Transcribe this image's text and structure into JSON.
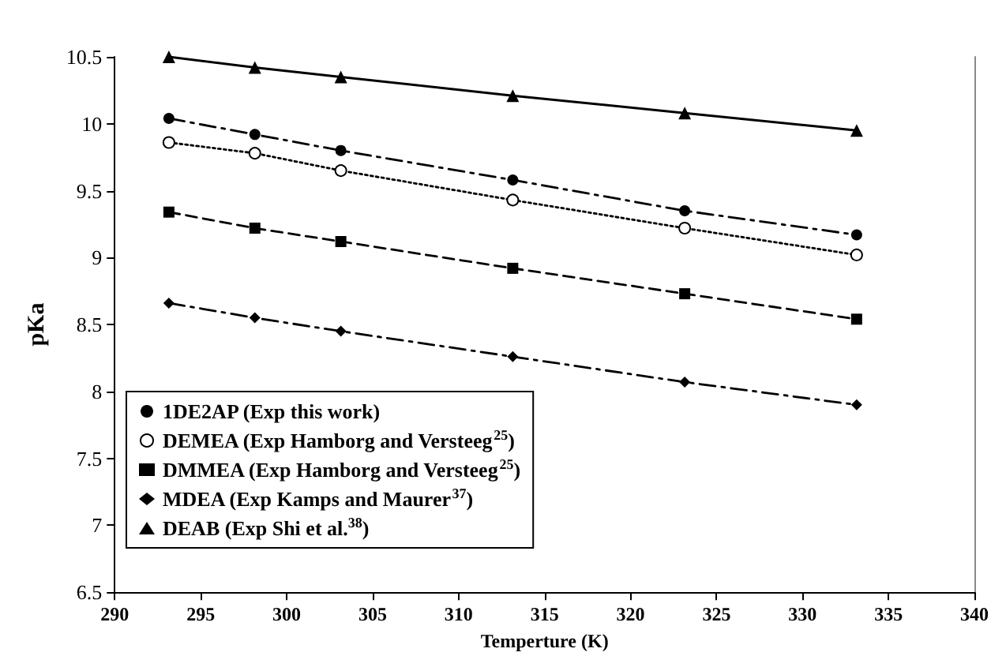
{
  "chart_data": {
    "type": "line",
    "xlabel": "Temperture (K)",
    "ylabel": "pKa",
    "xlim": [
      290,
      340
    ],
    "xticks": [
      290,
      295,
      300,
      305,
      310,
      315,
      320,
      325,
      330,
      335,
      340
    ],
    "ylim": [
      6.5,
      10.5
    ],
    "yticks": [
      6.5,
      7,
      7.5,
      8,
      8.5,
      9,
      9.5,
      10,
      10.5
    ],
    "x": [
      293.15,
      298.15,
      303.15,
      313.15,
      323.15,
      333.15
    ],
    "grid": false,
    "legend": "bottom left",
    "series": [
      {
        "name": "1DE2AP (Exp this work)",
        "color": "#000000",
        "marker": "circle",
        "line_style": "dashdot",
        "values": [
          10.04,
          9.92,
          9.8,
          9.58,
          9.35,
          9.17
        ]
      },
      {
        "name": "DEMEA (Exp Hamborg and Versteeg$^{25}$)",
        "color": "#000000",
        "marker": "open_circle",
        "line_style": "dotted",
        "values": [
          9.86,
          9.78,
          9.65,
          9.43,
          9.22,
          9.02
        ]
      },
      {
        "name": "DMMEA (Exp Hamborg and Versteeg$^{25}$)",
        "color": "#000000",
        "marker": "square",
        "line_style": "dashed",
        "values": [
          9.34,
          9.22,
          9.12,
          8.92,
          8.73,
          8.54
        ]
      },
      {
        "name": "MDEA (Exp Kamps and Maurer$^{37}$)",
        "color": "#000000",
        "marker": "diamond",
        "line_style": "dashdot",
        "values": [
          8.66,
          8.55,
          8.45,
          8.26,
          8.07,
          7.9
        ]
      },
      {
        "name": "DEAB (Exp Shi et al.$^{38}$)",
        "color": "#000000",
        "marker": "triangle",
        "line_style": "solid",
        "values": [
          10.5,
          10.42,
          10.35,
          10.21,
          10.08,
          9.95
        ]
      }
    ]
  }
}
